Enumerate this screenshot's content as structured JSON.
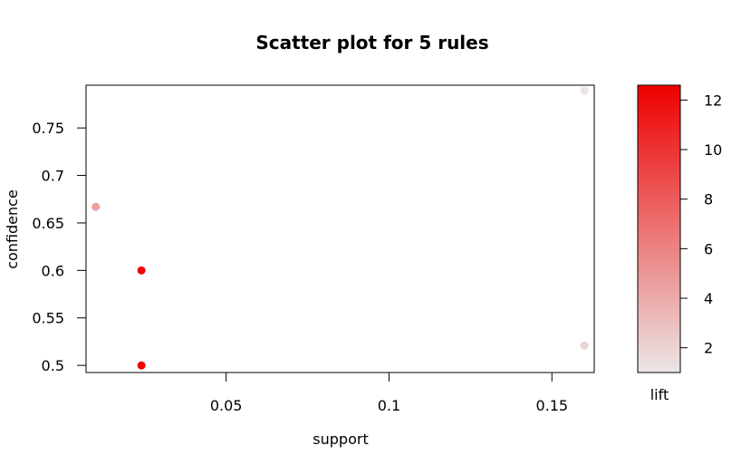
{
  "chart_data": {
    "type": "scatter",
    "title": "Scatter plot for 5 rules",
    "xlabel": "support",
    "ylabel": "confidence",
    "xlim": [
      0.007,
      0.163
    ],
    "ylim": [
      0.4925,
      0.795
    ],
    "x_ticks": [
      0.05,
      0.1,
      0.15
    ],
    "x_tick_labels": [
      "0.05",
      "0.1",
      "0.15"
    ],
    "y_ticks": [
      0.5,
      0.55,
      0.6,
      0.65,
      0.7,
      0.75
    ],
    "y_tick_labels": [
      "0.5",
      "0.55",
      "0.6",
      "0.65",
      "0.7",
      "0.75"
    ],
    "points": [
      {
        "support": 0.16,
        "confidence": 0.789,
        "lift": 1.2
      },
      {
        "support": 0.01,
        "confidence": 0.667,
        "lift": 4.6
      },
      {
        "support": 0.024,
        "confidence": 0.6,
        "lift": 12.3
      },
      {
        "support": 0.024,
        "confidence": 0.5,
        "lift": 12.3
      },
      {
        "support": 0.16,
        "confidence": 0.521,
        "lift": 1.9
      }
    ],
    "colorbar": {
      "label": "lift",
      "range": [
        1.0,
        12.6
      ],
      "ticks": [
        2,
        4,
        6,
        8,
        10,
        12
      ],
      "tick_labels": [
        "2",
        "4",
        "6",
        "8",
        "10",
        "12"
      ],
      "color_low": "#ebe6e6",
      "color_high": "#ee0000"
    },
    "grid": false,
    "legend": "colorbar-right"
  }
}
